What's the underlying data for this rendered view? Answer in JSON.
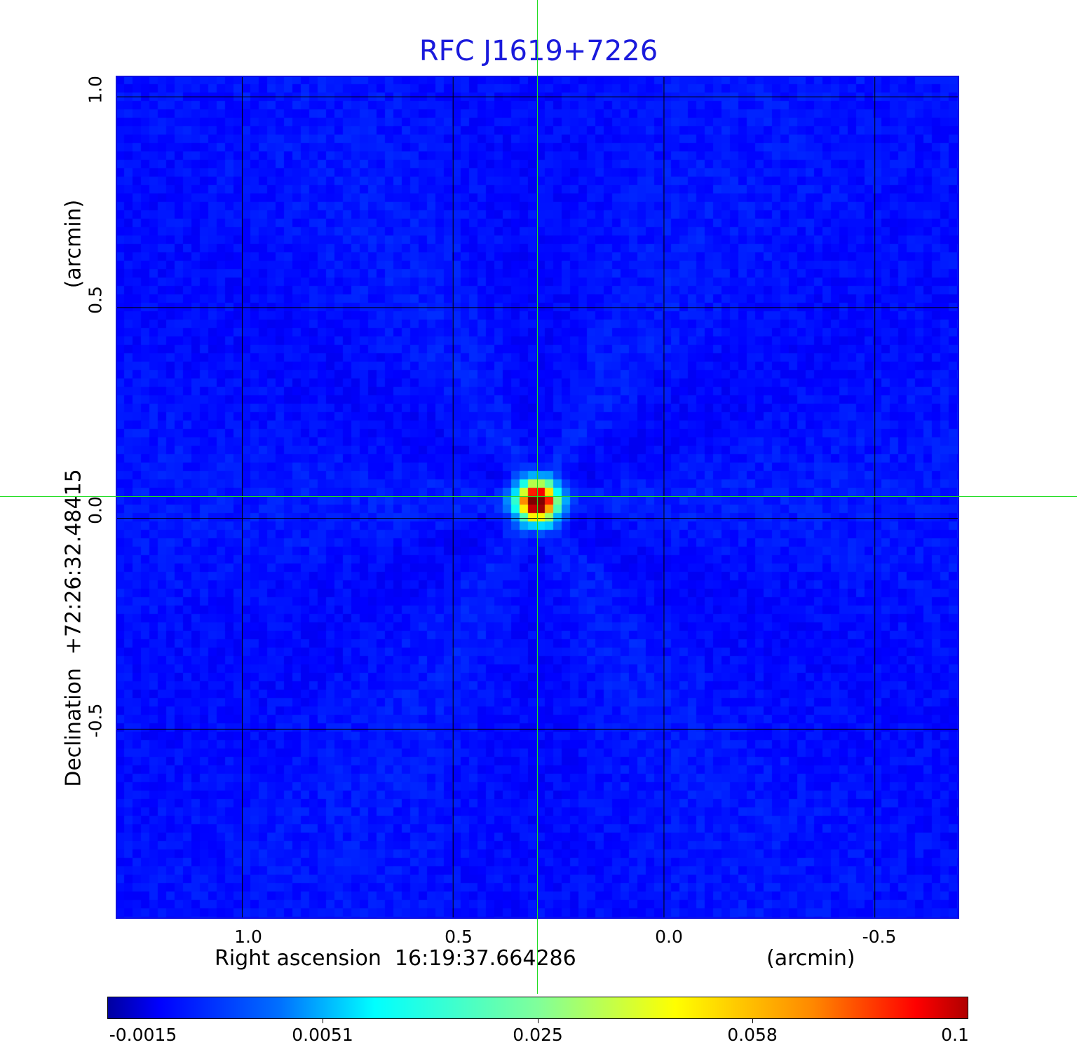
{
  "chart_data": {
    "type": "heatmap",
    "title": "RFC J1619+7226",
    "xlabel": "Right ascension  16:19:37.664286",
    "xunit": "(arcmin)",
    "ylabel": "Declination  +72:26:32.48415",
    "yunit": "(arcmin)",
    "x_ticks": [
      "1.0",
      "0.5",
      "0.0",
      "-0.5"
    ],
    "x_tick_values": [
      1.0,
      0.5,
      0.0,
      -0.5
    ],
    "y_ticks": [
      "1.0",
      "0.5",
      "0.0",
      "-0.5"
    ],
    "y_tick_values": [
      1.0,
      0.5,
      0.0,
      -0.5
    ],
    "xlim": [
      1.3,
      -0.7
    ],
    "ylim": [
      -0.95,
      1.05
    ],
    "grid": true,
    "colormap": "jet",
    "colorbar": {
      "ticks": [
        "-0.0015",
        "0.0051",
        "0.025",
        "0.058",
        "0.1"
      ],
      "range": [
        -0.0015,
        0.1
      ],
      "placement": "bottom"
    },
    "peak": {
      "x": 0.3,
      "y": 0.04,
      "value": 0.1
    },
    "crosshair_color": "#22dd22",
    "frame_color": "#1010e0",
    "title_color": "#1a1adc"
  }
}
